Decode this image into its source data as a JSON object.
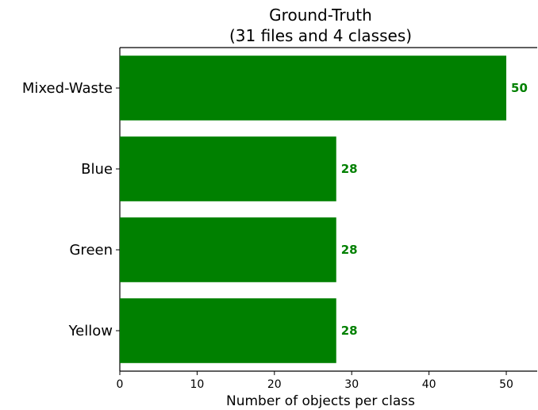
{
  "chart_data": {
    "type": "bar",
    "orientation": "horizontal",
    "title": "Ground-Truth",
    "subtitle": "(31 files and 4 classes)",
    "xlabel": "Number of objects per class",
    "ylabel": "",
    "categories": [
      "Mixed-Waste",
      "Blue",
      "Green",
      "Yellow"
    ],
    "values": [
      50,
      28,
      28,
      28
    ],
    "value_labels": [
      "50",
      "28",
      "28",
      "28"
    ],
    "xlim": [
      0,
      54
    ],
    "xticks": [
      0,
      10,
      20,
      30,
      40,
      50
    ],
    "xtick_labels": [
      "0",
      "10",
      "20",
      "30",
      "40",
      "50"
    ],
    "grid": false,
    "colors": {
      "bar": "#008000",
      "value_label": "#008000",
      "axis": "#000000"
    }
  }
}
